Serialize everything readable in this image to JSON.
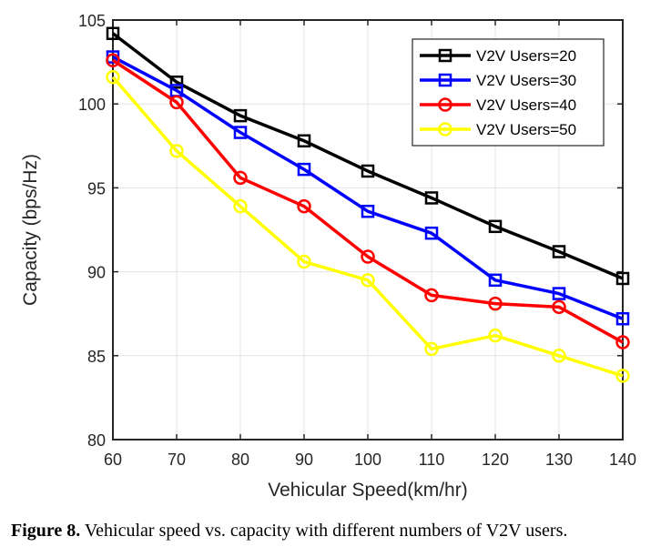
{
  "chart_data": {
    "type": "line",
    "title": "",
    "xlabel": "Vehicular Speed(km/hr)",
    "ylabel": "Capacity (bps/Hz)",
    "x": [
      60,
      70,
      80,
      90,
      100,
      110,
      120,
      130,
      140
    ],
    "xlim": [
      60,
      140
    ],
    "ylim": [
      80,
      105
    ],
    "xticks": [
      60,
      70,
      80,
      90,
      100,
      110,
      120,
      130,
      140
    ],
    "yticks": [
      80,
      85,
      90,
      95,
      100,
      105
    ],
    "grid": true,
    "legend_position": "top-right",
    "series": [
      {
        "name": "V2V Users=20",
        "color": "#000000",
        "marker": "square",
        "values": [
          104.2,
          101.3,
          99.3,
          97.8,
          96.0,
          94.4,
          92.7,
          91.2,
          89.6
        ]
      },
      {
        "name": "V2V Users=30",
        "color": "#0000ff",
        "marker": "square",
        "values": [
          102.8,
          100.8,
          98.3,
          96.1,
          93.6,
          92.3,
          89.5,
          88.7,
          87.2
        ]
      },
      {
        "name": "V2V Users=40",
        "color": "#ff0000",
        "marker": "circle",
        "values": [
          102.6,
          100.1,
          95.6,
          93.9,
          90.9,
          88.6,
          88.1,
          87.9,
          85.8
        ]
      },
      {
        "name": "V2V Users=50",
        "color": "#ffff00",
        "marker": "circle",
        "values": [
          101.6,
          97.2,
          93.9,
          90.6,
          89.5,
          85.4,
          86.2,
          85.0,
          83.8
        ]
      }
    ]
  },
  "caption": {
    "label": "Figure 8.",
    "text": " Vehicular speed vs. capacity with different numbers of V2V users."
  }
}
